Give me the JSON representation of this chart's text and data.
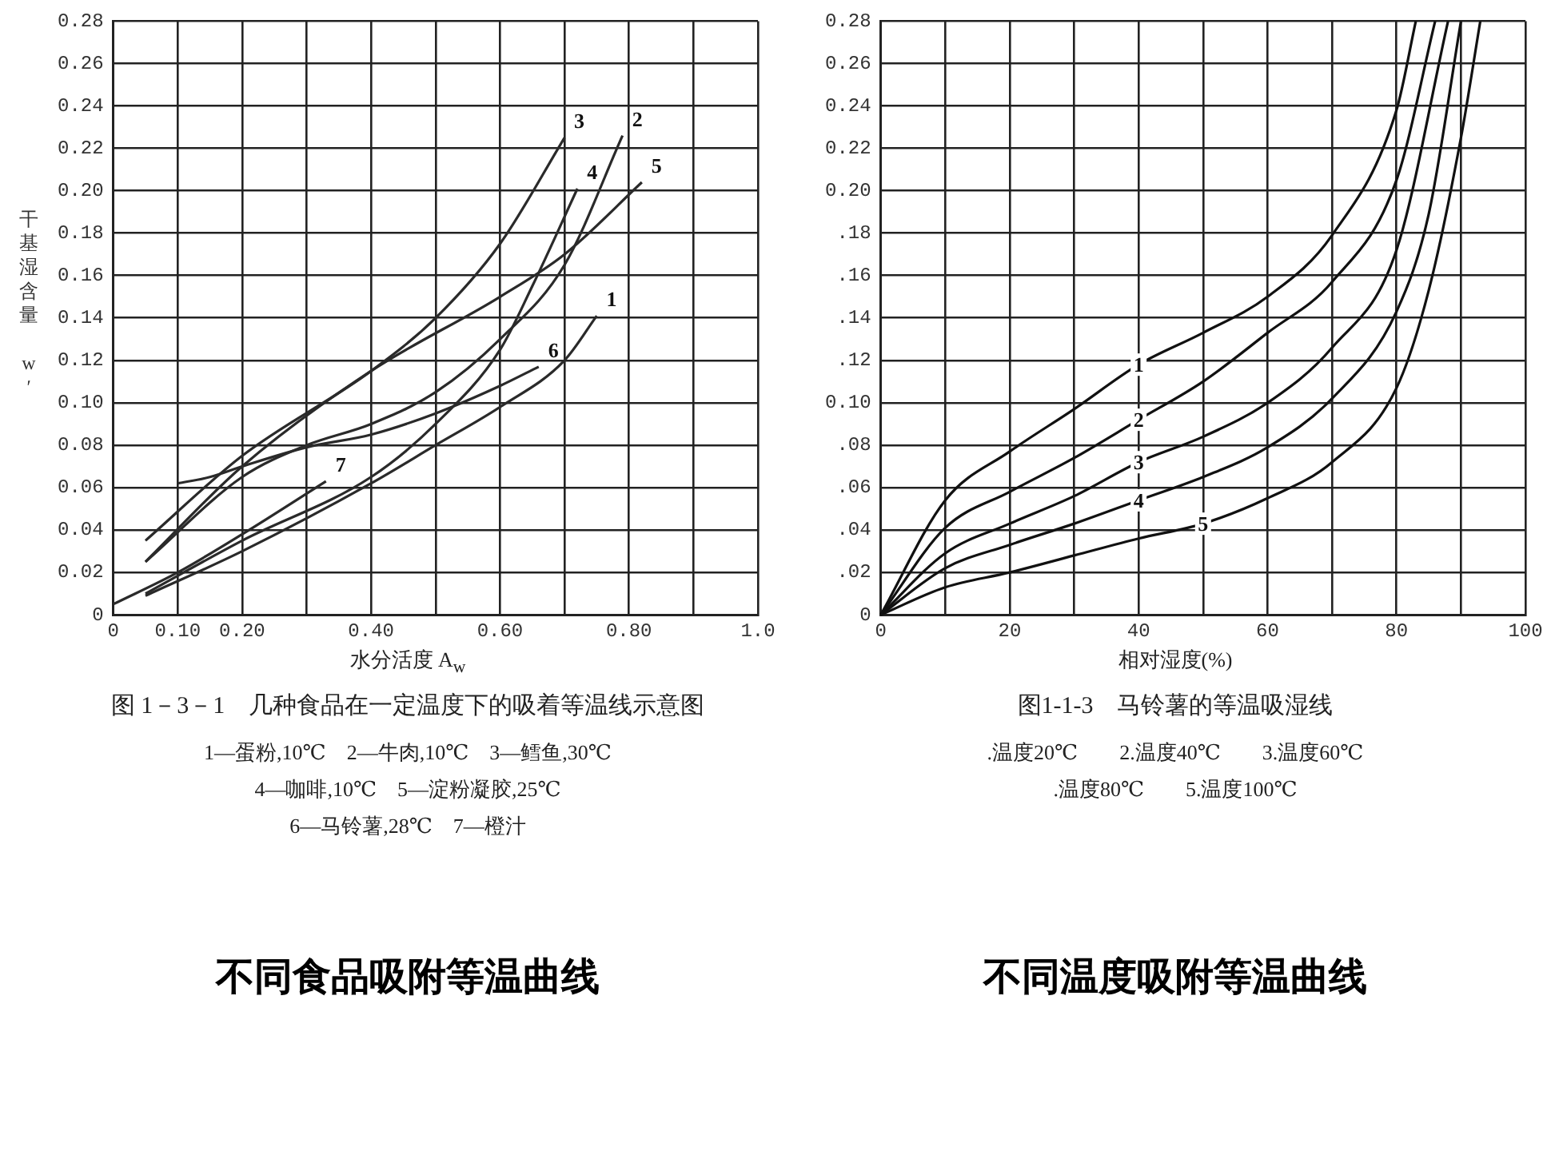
{
  "chart_data": [
    {
      "type": "line",
      "title": "不同食品吸附等温曲线",
      "subtitle": "图 1－3－1　几种食品在一定温度下的吸着等温线示意图",
      "xlabel": "水分活度 A$_{w}$",
      "ylabel": "干基湿含量 w′",
      "xlim": [
        0,
        1.0
      ],
      "ylim": [
        0,
        0.28
      ],
      "xticks": [
        {
          "value": 0,
          "label": "0"
        },
        {
          "value": 0.1,
          "label": "0.10"
        },
        {
          "value": 0.2,
          "label": "0.20"
        },
        {
          "value": 0.3,
          "label": null
        },
        {
          "value": 0.4,
          "label": "0.40"
        },
        {
          "value": 0.5,
          "label": null
        },
        {
          "value": 0.6,
          "label": "0.60"
        },
        {
          "value": 0.7,
          "label": null
        },
        {
          "value": 0.8,
          "label": "0.80"
        },
        {
          "value": 0.9,
          "label": null
        },
        {
          "value": 1.0,
          "label": "1.0"
        }
      ],
      "yticks": [
        {
          "value": 0,
          "label": "0"
        },
        {
          "value": 0.02,
          "label": "0.02"
        },
        {
          "value": 0.04,
          "label": "0.04"
        },
        {
          "value": 0.06,
          "label": "0.06"
        },
        {
          "value": 0.08,
          "label": "0.08"
        },
        {
          "value": 0.1,
          "label": "0.10"
        },
        {
          "value": 0.12,
          "label": "0.12"
        },
        {
          "value": 0.14,
          "label": "0.14"
        },
        {
          "value": 0.16,
          "label": "0.16"
        },
        {
          "value": 0.18,
          "label": "0.18"
        },
        {
          "value": 0.2,
          "label": "0.20"
        },
        {
          "value": 0.22,
          "label": "0.22"
        },
        {
          "value": 0.24,
          "label": "0.24"
        },
        {
          "value": 0.26,
          "label": "0.26"
        },
        {
          "value": 0.28,
          "label": "0.28"
        }
      ],
      "grid": true,
      "legend": false,
      "marker": "none",
      "line_style": "solid",
      "series": [
        {
          "name": "1",
          "color": "#2a2a2a",
          "x": [
            0.05,
            0.2,
            0.4,
            0.5,
            0.6,
            0.7,
            0.75
          ],
          "values": [
            0.009,
            0.03,
            0.062,
            0.08,
            0.098,
            0.12,
            0.141
          ]
        },
        {
          "name": "2",
          "color": "#2a2a2a",
          "x": [
            0.05,
            0.2,
            0.3,
            0.4,
            0.5,
            0.6,
            0.7,
            0.79
          ],
          "values": [
            0.025,
            0.065,
            0.08,
            0.09,
            0.105,
            0.13,
            0.165,
            0.226
          ]
        },
        {
          "name": "3",
          "color": "#2a2a2a",
          "x": [
            0.05,
            0.2,
            0.4,
            0.5,
            0.6,
            0.7
          ],
          "values": [
            0.035,
            0.075,
            0.115,
            0.14,
            0.175,
            0.225
          ]
        },
        {
          "name": "4",
          "color": "#2a2a2a",
          "x": [
            0.05,
            0.2,
            0.4,
            0.5,
            0.6,
            0.65,
            0.72
          ],
          "values": [
            0.01,
            0.035,
            0.065,
            0.09,
            0.125,
            0.155,
            0.201
          ]
        },
        {
          "name": "5",
          "color": "#2a2a2a",
          "x": [
            0.05,
            0.2,
            0.4,
            0.6,
            0.7,
            0.82
          ],
          "values": [
            0.025,
            0.07,
            0.115,
            0.15,
            0.17,
            0.204
          ]
        },
        {
          "name": "6",
          "color": "#2a2a2a",
          "x": [
            0.1,
            0.15,
            0.2,
            0.3,
            0.4,
            0.5,
            0.6,
            0.66
          ],
          "values": [
            0.062,
            0.065,
            0.07,
            0.079,
            0.085,
            0.095,
            0.108,
            0.117
          ]
        },
        {
          "name": "7",
          "color": "#2a2a2a",
          "x": [
            0.0,
            0.1,
            0.2,
            0.33
          ],
          "values": [
            0.005,
            0.02,
            0.038,
            0.063
          ]
        }
      ],
      "annotations": [
        "1—蛋粉,10℃　2—牛肉,10℃　3—鳕鱼,30℃",
        "4—咖啡,10℃　5—淀粉凝胶,25℃",
        "6—马铃薯,28℃　7—橙汁"
      ]
    },
    {
      "type": "line",
      "title": "不同温度吸附等温曲线",
      "subtitle": "图1-1-3　马铃薯的等温吸湿线",
      "xlabel": "相对湿度(%)",
      "xlim": [
        0,
        100
      ],
      "ylim": [
        0,
        0.28
      ],
      "xticks": [
        0,
        {
          "value": 10,
          "label": null
        },
        20,
        {
          "value": 30,
          "label": null
        },
        40,
        {
          "value": 50,
          "label": null
        },
        60,
        {
          "value": 70,
          "label": null
        },
        80,
        {
          "value": 90,
          "label": null
        },
        100
      ],
      "yticks": [
        {
          "value": 0,
          "label": "0"
        },
        {
          "value": 0.02,
          "label": ".02"
        },
        {
          "value": 0.04,
          "label": ".04"
        },
        {
          "value": 0.06,
          "label": ".06"
        },
        {
          "value": 0.08,
          "label": ".08"
        },
        {
          "value": 0.1,
          "label": "0.10"
        },
        {
          "value": 0.12,
          "label": ".12"
        },
        {
          "value": 0.14,
          "label": ".14"
        },
        {
          "value": 0.16,
          "label": ".16"
        },
        {
          "value": 0.18,
          "label": ".18"
        },
        {
          "value": 0.2,
          "label": "0.20"
        },
        {
          "value": 0.22,
          "label": "0.22"
        },
        {
          "value": 0.24,
          "label": "0.24"
        },
        {
          "value": 0.26,
          "label": "0.26"
        },
        {
          "value": 0.28,
          "label": "0.28"
        }
      ],
      "grid": true,
      "legend": false,
      "marker": "none",
      "line_style": "solid",
      "series": [
        {
          "name": "1",
          "color": "#111111",
          "x": [
            0,
            10,
            20,
            30,
            40,
            50,
            60,
            70,
            80,
            83
          ],
          "values": [
            0,
            0.054,
            0.077,
            0.097,
            0.118,
            0.133,
            0.15,
            0.179,
            0.238,
            0.28
          ]
        },
        {
          "name": "2",
          "color": "#111111",
          "x": [
            0,
            10,
            20,
            30,
            40,
            50,
            60,
            70,
            80,
            86
          ],
          "values": [
            0,
            0.041,
            0.058,
            0.074,
            0.092,
            0.11,
            0.133,
            0.157,
            0.205,
            0.28
          ]
        },
        {
          "name": "3",
          "color": "#111111",
          "x": [
            0,
            10,
            20,
            30,
            40,
            50,
            60,
            70,
            80,
            88
          ],
          "values": [
            0,
            0.029,
            0.043,
            0.056,
            0.072,
            0.084,
            0.1,
            0.126,
            0.172,
            0.28
          ]
        },
        {
          "name": "4",
          "color": "#111111",
          "x": [
            0,
            10,
            20,
            30,
            40,
            50,
            60,
            70,
            80,
            85,
            90
          ],
          "values": [
            0,
            0.022,
            0.033,
            0.043,
            0.054,
            0.065,
            0.079,
            0.102,
            0.143,
            0.189,
            0.28
          ]
        },
        {
          "name": "5",
          "color": "#111111",
          "x": [
            0,
            10,
            20,
            30,
            40,
            50,
            60,
            70,
            80,
            85,
            90,
            93
          ],
          "values": [
            0,
            0.013,
            0.02,
            0.028,
            0.036,
            0.043,
            0.055,
            0.072,
            0.107,
            0.153,
            0.225,
            0.28
          ]
        }
      ],
      "annotations": [
        ".温度20℃　　2.温度40℃　　3.温度60℃",
        ".温度80℃　　5.温度100℃"
      ]
    }
  ]
}
